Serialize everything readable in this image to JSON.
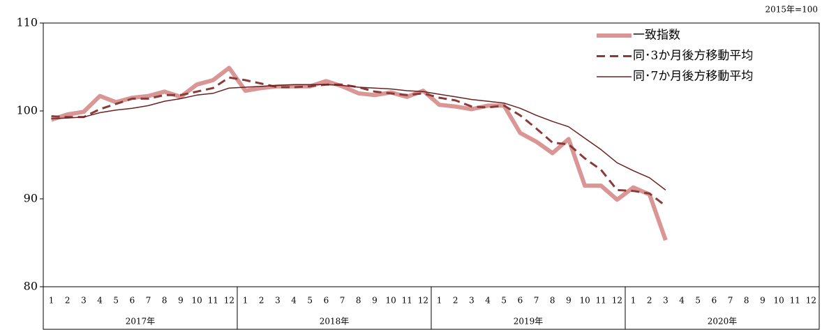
{
  "chart_data": {
    "type": "line",
    "unit_note": "2015年=100",
    "categories": [
      "1",
      "2",
      "3",
      "4",
      "5",
      "6",
      "7",
      "8",
      "9",
      "10",
      "11",
      "12",
      "1",
      "2",
      "3",
      "4",
      "5",
      "6",
      "7",
      "8",
      "9",
      "10",
      "11",
      "12",
      "1",
      "2",
      "3",
      "4",
      "5",
      "6",
      "7",
      "8",
      "9",
      "10",
      "11",
      "12",
      "1",
      "2",
      "3",
      "4",
      "5",
      "6",
      "7",
      "8",
      "9",
      "10",
      "11",
      "12"
    ],
    "year_labels": [
      "2017年",
      "2018年",
      "2019年",
      "2020年"
    ],
    "series": [
      {
        "name": "一致指数",
        "color": "#d99694",
        "style": "thick",
        "values": [
          99.0,
          99.6,
          99.9,
          101.7,
          101.0,
          101.5,
          101.7,
          102.2,
          101.6,
          103.0,
          103.5,
          104.9,
          102.3,
          102.6,
          102.8,
          102.8,
          102.8,
          103.4,
          102.8,
          102.0,
          101.8,
          102.1,
          101.6,
          102.3,
          100.7,
          100.5,
          100.2,
          100.6,
          100.6,
          97.5,
          96.5,
          95.2,
          96.8,
          91.5,
          91.5,
          89.9,
          91.3,
          90.5,
          85.3,
          null,
          null,
          null,
          null,
          null,
          null,
          null,
          null,
          null
        ]
      },
      {
        "name": "同･3か月後方移動平均",
        "color": "#8b3a3a",
        "style": "dashed",
        "values": [
          99.4,
          99.3,
          99.3,
          100.2,
          100.8,
          101.4,
          101.4,
          101.8,
          101.8,
          102.2,
          102.6,
          103.8,
          103.5,
          103.1,
          102.7,
          102.7,
          102.8,
          103.0,
          103.0,
          102.7,
          102.2,
          102.0,
          101.8,
          102.0,
          101.5,
          101.2,
          100.5,
          100.4,
          100.6,
          99.5,
          98.0,
          96.4,
          96.2,
          94.6,
          93.3,
          91.0,
          90.9,
          90.6,
          89.2,
          null,
          null,
          null,
          null,
          null,
          null,
          null,
          null,
          null
        ]
      },
      {
        "name": "同･7か月後方移動平均",
        "color": "#6b2020",
        "style": "thin",
        "values": [
          99.1,
          99.2,
          99.3,
          99.8,
          100.1,
          100.3,
          100.6,
          101.1,
          101.4,
          101.8,
          102.0,
          102.6,
          102.7,
          102.8,
          102.9,
          103.0,
          103.0,
          103.0,
          102.9,
          102.7,
          102.6,
          102.5,
          102.3,
          102.2,
          101.9,
          101.6,
          101.3,
          101.1,
          100.9,
          100.3,
          99.5,
          98.8,
          98.2,
          96.9,
          95.6,
          94.1,
          93.2,
          92.4,
          91.0,
          null,
          null,
          null,
          null,
          null,
          null,
          null,
          null,
          null
        ]
      }
    ],
    "ylim": [
      80,
      110
    ],
    "yticks": [
      80,
      90,
      100,
      110
    ],
    "grid": false,
    "legend": "upper right"
  }
}
